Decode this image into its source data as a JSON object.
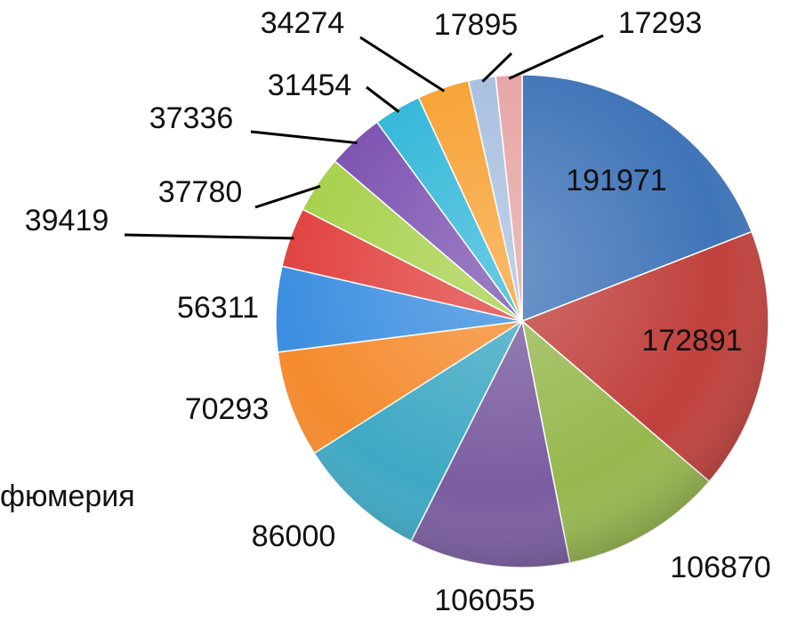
{
  "chart_data": {
    "type": "pie",
    "values": [
      191971,
      172891,
      106870,
      106055,
      86000,
      70293,
      56311,
      39419,
      37780,
      37336,
      31454,
      34274,
      17895,
      17293
    ],
    "colors": [
      "#3f74b8",
      "#c0403c",
      "#97b84e",
      "#7a5ca0",
      "#3ea8c4",
      "#f58a2e",
      "#3b8ee0",
      "#e0413f",
      "#a6d04a",
      "#7a4fb0",
      "#2fb6d8",
      "#f7a030",
      "#a8bfe0",
      "#e6a3a3"
    ],
    "annotations": [
      "фюмерия"
    ]
  }
}
